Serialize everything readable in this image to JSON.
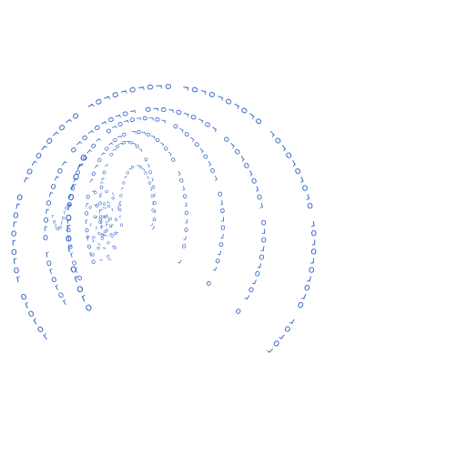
{
  "artwork": {
    "glyph_chars": "ro",
    "ink_color": "#3c6acb",
    "background_color": "#ffffff",
    "arc_count": 7
  }
}
